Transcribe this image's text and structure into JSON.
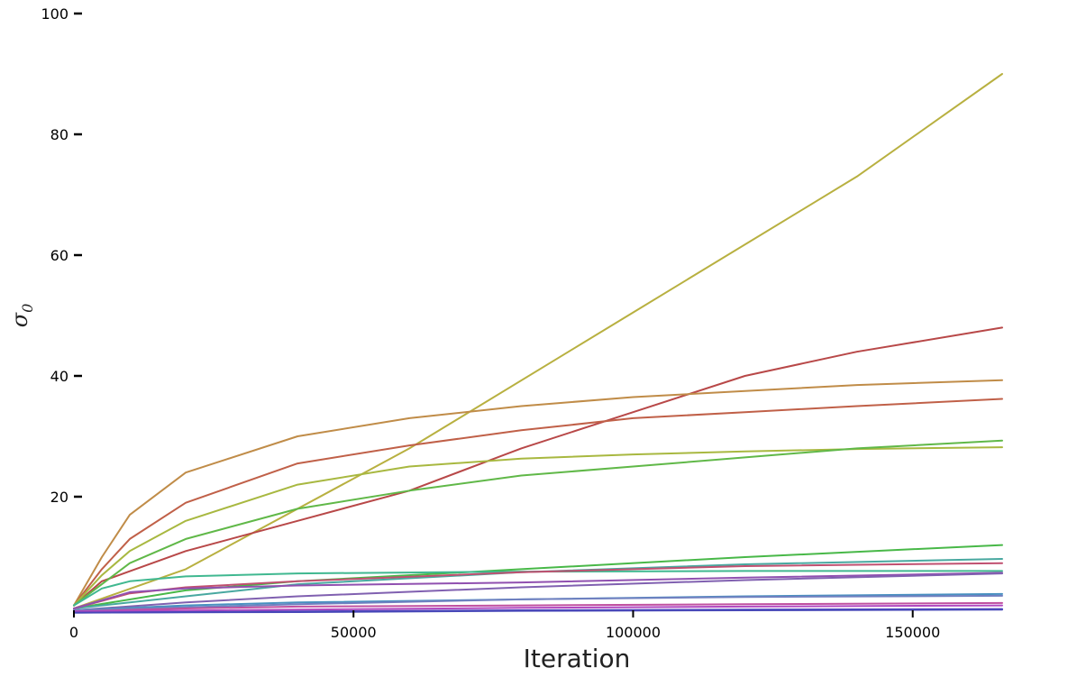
{
  "chart_data": {
    "type": "line",
    "title": "",
    "xlabel": "Iteration",
    "ylabel": "σ",
    "ylabel_subscript": "0",
    "xlim": [
      0,
      166000
    ],
    "ylim": [
      0,
      100
    ],
    "x_ticks": [
      {
        "value": 0,
        "label": "0"
      },
      {
        "value": 50000,
        "label": "50000"
      },
      {
        "value": 100000,
        "label": "100000"
      },
      {
        "value": 150000,
        "label": "150000"
      }
    ],
    "y_ticks": [
      {
        "value": 20,
        "label": "20"
      },
      {
        "value": 40,
        "label": "40"
      },
      {
        "value": 60,
        "label": "60"
      },
      {
        "value": 80,
        "label": "80"
      },
      {
        "value": 100,
        "label": "100"
      }
    ],
    "grid": false,
    "legend": "none",
    "series": [
      {
        "color": "#b8b040",
        "x": [
          0,
          20000,
          60000,
          100000,
          140000,
          166000
        ],
        "y": [
          1.5,
          8,
          28,
          50.5,
          73,
          90
        ]
      },
      {
        "color": "#b84848",
        "x": [
          0,
          5000,
          20000,
          40000,
          60000,
          80000,
          100000,
          120000,
          140000,
          166000
        ],
        "y": [
          2,
          6,
          11,
          16,
          21,
          28,
          34,
          40,
          44,
          48
        ]
      },
      {
        "color": "#c08c48",
        "x": [
          0,
          5000,
          10000,
          20000,
          40000,
          60000,
          80000,
          100000,
          120000,
          140000,
          166000
        ],
        "y": [
          2,
          10,
          17,
          24,
          30,
          33,
          35,
          36.5,
          37.5,
          38.5,
          39.3
        ]
      },
      {
        "color": "#c06048",
        "x": [
          0,
          5000,
          10000,
          20000,
          40000,
          60000,
          80000,
          100000,
          120000,
          140000,
          166000
        ],
        "y": [
          2,
          8,
          13,
          19,
          25.5,
          28.5,
          31,
          33,
          34,
          35,
          36.2
        ]
      },
      {
        "color": "#a8b840",
        "x": [
          0,
          5000,
          10000,
          20000,
          40000,
          60000,
          80000,
          100000,
          120000,
          140000,
          166000
        ],
        "y": [
          2,
          7,
          11,
          16,
          22,
          25,
          26.3,
          27,
          27.5,
          27.9,
          28.2
        ]
      },
      {
        "color": "#60b848",
        "x": [
          0,
          5000,
          10000,
          20000,
          40000,
          60000,
          80000,
          100000,
          120000,
          140000,
          166000
        ],
        "y": [
          2,
          5.5,
          9,
          13,
          18,
          21,
          23.5,
          25,
          26.5,
          28,
          29.3
        ]
      },
      {
        "color": "#48b848",
        "x": [
          0,
          20000,
          40000,
          80000,
          120000,
          166000
        ],
        "y": [
          1.5,
          4.5,
          6,
          8,
          10,
          12
        ]
      },
      {
        "color": "#40b890",
        "x": [
          0,
          5000,
          10000,
          20000,
          40000,
          80000,
          120000,
          166000
        ],
        "y": [
          2,
          4.8,
          6,
          6.8,
          7.3,
          7.6,
          7.7,
          7.7
        ]
      },
      {
        "color": "#48a8a0",
        "x": [
          0,
          20000,
          40000,
          80000,
          120000,
          166000
        ],
        "y": [
          1.5,
          3.5,
          5.5,
          7.5,
          8.8,
          9.7
        ]
      },
      {
        "color": "#c05070",
        "x": [
          0,
          10000,
          20000,
          40000,
          80000,
          120000,
          166000
        ],
        "y": [
          1.5,
          4,
          5,
          6,
          7.5,
          8.5,
          9
        ]
      },
      {
        "color": "#9050b0",
        "x": [
          0,
          10000,
          20000,
          40000,
          80000,
          120000,
          166000
        ],
        "y": [
          1.5,
          4.2,
          4.8,
          5.3,
          5.8,
          6.6,
          7.4
        ]
      },
      {
        "color": "#8060b0",
        "x": [
          0,
          20000,
          40000,
          80000,
          120000,
          166000
        ],
        "y": [
          1.2,
          2.5,
          3.5,
          5,
          6.2,
          7.3
        ]
      },
      {
        "color": "#4890c0",
        "x": [
          0,
          20000,
          40000,
          80000,
          120000,
          166000
        ],
        "y": [
          1.2,
          2,
          2.5,
          3,
          3.5,
          3.9
        ]
      },
      {
        "color": "#7080c0",
        "x": [
          0,
          40000,
          80000,
          120000,
          166000
        ],
        "y": [
          1.2,
          2.2,
          3,
          3.4,
          3.6
        ]
      },
      {
        "color": "#c050a0",
        "x": [
          0,
          20000,
          40000,
          80000,
          120000,
          166000
        ],
        "y": [
          1,
          1.5,
          1.8,
          2,
          2.2,
          2.4
        ]
      },
      {
        "color": "#b048c0",
        "x": [
          0,
          40000,
          80000,
          120000,
          166000
        ],
        "y": [
          1,
          1.3,
          1.6,
          1.8,
          2
        ]
      },
      {
        "color": "#5040c0",
        "x": [
          0,
          40000,
          80000,
          120000,
          166000
        ],
        "y": [
          0.8,
          1,
          1.2,
          1.3,
          1.4
        ]
      },
      {
        "color": "#4848b8",
        "x": [
          0,
          40000,
          80000,
          120000,
          166000
        ],
        "y": [
          0.8,
          0.9,
          1.1,
          1.2,
          1.3
        ]
      }
    ]
  }
}
